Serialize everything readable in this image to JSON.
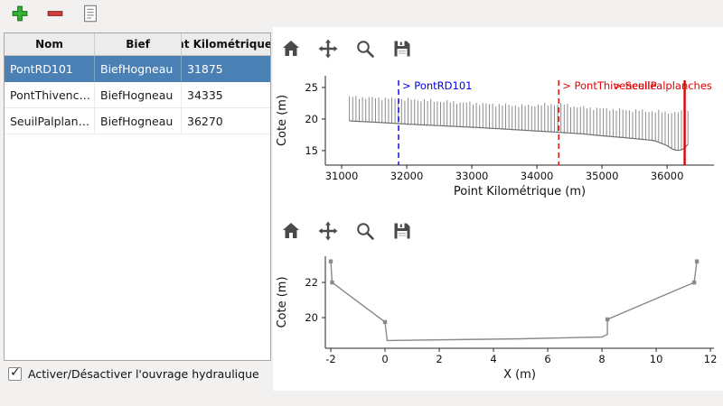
{
  "main_toolbar": {
    "buttons": [
      {
        "name": "add",
        "icon": "plus-icon"
      },
      {
        "name": "remove",
        "icon": "minus-icon"
      },
      {
        "name": "edit",
        "icon": "document-icon"
      }
    ]
  },
  "plot_toolbar": {
    "buttons": [
      {
        "name": "home",
        "icon": "home-icon"
      },
      {
        "name": "pan",
        "icon": "pan-arrows-icon"
      },
      {
        "name": "zoom",
        "icon": "magnifier-icon"
      },
      {
        "name": "save",
        "icon": "floppy-disk-icon"
      }
    ]
  },
  "table": {
    "columns": [
      "Nom",
      "Bief",
      "Point Kilométrique"
    ],
    "rows": [
      {
        "nom": "PontRD101",
        "bief": "BiefHogneau",
        "pk": "31875"
      },
      {
        "nom": "PontThivencelle",
        "bief": "BiefHogneau",
        "pk": "34335"
      },
      {
        "nom": "SeuilPalplanches",
        "bief": "BiefHogneau",
        "pk": "36270"
      }
    ],
    "selected_row": 0
  },
  "checkbox": {
    "label": "Activer/Désactiver l'ouvrage hydraulique",
    "checked": true
  },
  "colors": {
    "selection": "#4a80b4",
    "annotation_blue": "#0000e6",
    "annotation_red": "#e60000"
  },
  "chart_data": [
    {
      "type": "line",
      "xlabel": "Point Kilométrique (m)",
      "ylabel": "Cote (m)",
      "xlim": [
        30750,
        36720
      ],
      "ylim": [
        12.7,
        26.85
      ],
      "xticks": [
        31000,
        32000,
        33000,
        34000,
        35000,
        36000
      ],
      "yticks": [
        15,
        20,
        25
      ],
      "grid": false,
      "sections": {
        "start": 31120,
        "end": 36350,
        "step": 50
      },
      "top_envelope": [
        [
          31120,
          23.5
        ],
        [
          31600,
          23.3
        ],
        [
          32200,
          23.0
        ],
        [
          33000,
          22.5
        ],
        [
          33800,
          22.1
        ],
        [
          34400,
          22.4
        ],
        [
          34600,
          21.9
        ],
        [
          35200,
          21.5
        ],
        [
          35800,
          21.2
        ],
        [
          36100,
          21.0
        ],
        [
          36350,
          21.3
        ]
      ],
      "bed_profile": [
        [
          31120,
          19.7
        ],
        [
          31600,
          19.45
        ],
        [
          32000,
          19.2
        ],
        [
          32600,
          18.9
        ],
        [
          33000,
          18.7
        ],
        [
          33600,
          18.35
        ],
        [
          34000,
          18.1
        ],
        [
          34335,
          17.9
        ],
        [
          34700,
          17.65
        ],
        [
          35000,
          17.35
        ],
        [
          35400,
          17.0
        ],
        [
          35800,
          16.6
        ],
        [
          36000,
          15.8
        ],
        [
          36100,
          15.1
        ],
        [
          36200,
          15.0
        ],
        [
          36270,
          15.4
        ],
        [
          36350,
          16.4
        ]
      ],
      "annotations": [
        {
          "label": "> PontRD101",
          "x": 31875,
          "color": "#0000e6",
          "line_style": "dashed"
        },
        {
          "label": "> PontThivencelle",
          "x": 34335,
          "color": "#e60000",
          "line_style": "dashed"
        },
        {
          "label": "> SeuilPalplanches",
          "x": 36270,
          "color": "#e60000",
          "line_style": "solid"
        }
      ]
    },
    {
      "type": "line",
      "xlabel": "X (m)",
      "ylabel": "Cote (m)",
      "xlim": [
        -2.2,
        12.13
      ],
      "ylim": [
        18.26,
        23.49
      ],
      "xticks": [
        -2,
        0,
        2,
        4,
        6,
        8,
        10,
        12
      ],
      "yticks": [
        20,
        22
      ],
      "grid": false,
      "points": [
        [
          -2.0,
          23.2,
          1
        ],
        [
          -1.95,
          22.0,
          1
        ],
        [
          0.0,
          19.75,
          1
        ],
        [
          0.08,
          18.7,
          0
        ],
        [
          5.0,
          18.8,
          0
        ],
        [
          8.0,
          18.9,
          0
        ],
        [
          8.2,
          19.05,
          0
        ],
        [
          8.2,
          19.9,
          1
        ],
        [
          11.4,
          22.0,
          1
        ],
        [
          11.5,
          23.2,
          1
        ]
      ]
    }
  ]
}
